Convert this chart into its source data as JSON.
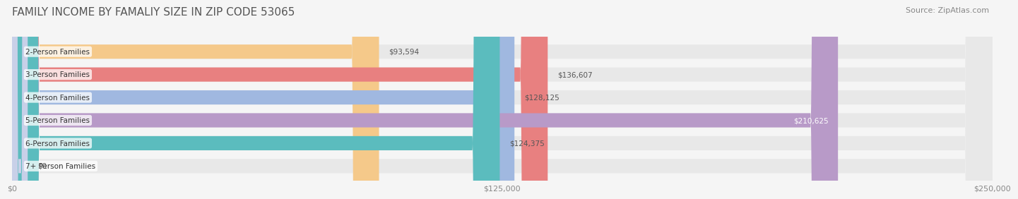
{
  "title": "FAMILY INCOME BY FAMALIY SIZE IN ZIP CODE 53065",
  "source": "Source: ZipAtlas.com",
  "categories": [
    "2-Person Families",
    "3-Person Families",
    "4-Person Families",
    "5-Person Families",
    "6-Person Families",
    "7+ Person Families"
  ],
  "values": [
    93594,
    136607,
    128125,
    210625,
    124375,
    0
  ],
  "bar_colors": [
    "#f5c98a",
    "#e88080",
    "#a0b8e0",
    "#b89ac8",
    "#5bbcbe",
    "#c8d0e8"
  ],
  "label_colors": [
    "#555555",
    "#555555",
    "#555555",
    "#ffffff",
    "#555555",
    "#555555"
  ],
  "value_labels": [
    "$93,594",
    "$136,607",
    "$128,125",
    "$210,625",
    "$124,375",
    "$0"
  ],
  "xlim": [
    0,
    250000
  ],
  "xticklabels": [
    "$0",
    "$125,000",
    "$250,000"
  ],
  "background_color": "#f5f5f5",
  "bar_bg_color": "#e8e8e8",
  "title_fontsize": 11,
  "source_fontsize": 8,
  "bar_height": 0.62
}
